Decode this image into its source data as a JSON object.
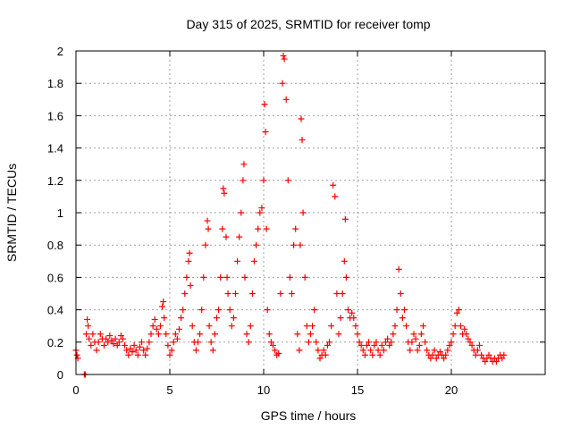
{
  "chart_data": {
    "type": "scatter",
    "title": "Day 315 of 2025, SRMTID for receiver tomp",
    "xlabel": "GPS time / hours",
    "ylabel": "SRMTID / TECUs",
    "xlim": [
      0,
      25
    ],
    "ylim": [
      0,
      2
    ],
    "xticks": [
      0,
      5,
      10,
      15,
      20
    ],
    "xtick_labels": [
      "0",
      "5",
      "10",
      "15",
      "20"
    ],
    "yticks": [
      0,
      0.2,
      0.4,
      0.6,
      0.8,
      1,
      1.2,
      1.4,
      1.6,
      1.8,
      2
    ],
    "ytick_labels": [
      "0",
      "0.2",
      "0.4",
      "0.6",
      "0.8",
      "1",
      "1.2",
      "1.4",
      "1.6",
      "1.8",
      "2"
    ],
    "grid": true,
    "marker": "+",
    "color": "#ff0000",
    "series": [
      {
        "name": "SRMTID",
        "points": [
          [
            0.0,
            0.15
          ],
          [
            0.05,
            0.12
          ],
          [
            0.1,
            0.1
          ],
          [
            0.45,
            0.0
          ],
          [
            0.5,
            0.0
          ],
          [
            0.55,
            0.25
          ],
          [
            0.6,
            0.34
          ],
          [
            0.65,
            0.3
          ],
          [
            0.7,
            0.22
          ],
          [
            0.8,
            0.18
          ],
          [
            0.9,
            0.25
          ],
          [
            1.0,
            0.2
          ],
          [
            1.1,
            0.15
          ],
          [
            1.2,
            0.2
          ],
          [
            1.3,
            0.25
          ],
          [
            1.4,
            0.22
          ],
          [
            1.5,
            0.18
          ],
          [
            1.6,
            0.22
          ],
          [
            1.7,
            0.2
          ],
          [
            1.8,
            0.24
          ],
          [
            1.9,
            0.21
          ],
          [
            2.0,
            0.19
          ],
          [
            2.1,
            0.22
          ],
          [
            2.2,
            0.18
          ],
          [
            2.3,
            0.2
          ],
          [
            2.4,
            0.24
          ],
          [
            2.5,
            0.22
          ],
          [
            2.6,
            0.18
          ],
          [
            2.7,
            0.15
          ],
          [
            2.8,
            0.12
          ],
          [
            2.9,
            0.16
          ],
          [
            3.0,
            0.14
          ],
          [
            3.1,
            0.18
          ],
          [
            3.2,
            0.15
          ],
          [
            3.3,
            0.12
          ],
          [
            3.4,
            0.17
          ],
          [
            3.5,
            0.2
          ],
          [
            3.6,
            0.15
          ],
          [
            3.7,
            0.12
          ],
          [
            3.8,
            0.16
          ],
          [
            3.9,
            0.2
          ],
          [
            4.0,
            0.25
          ],
          [
            4.1,
            0.3
          ],
          [
            4.2,
            0.34
          ],
          [
            4.3,
            0.28
          ],
          [
            4.4,
            0.25
          ],
          [
            4.5,
            0.3
          ],
          [
            4.6,
            0.42
          ],
          [
            4.65,
            0.45
          ],
          [
            4.7,
            0.35
          ],
          [
            4.8,
            0.25
          ],
          [
            4.9,
            0.18
          ],
          [
            5.0,
            0.12
          ],
          [
            5.1,
            0.15
          ],
          [
            5.2,
            0.2
          ],
          [
            5.3,
            0.25
          ],
          [
            5.4,
            0.22
          ],
          [
            5.5,
            0.28
          ],
          [
            5.6,
            0.35
          ],
          [
            5.7,
            0.4
          ],
          [
            5.8,
            0.5
          ],
          [
            5.9,
            0.6
          ],
          [
            6.0,
            0.7
          ],
          [
            6.05,
            0.75
          ],
          [
            6.1,
            0.55
          ],
          [
            6.2,
            0.3
          ],
          [
            6.3,
            0.2
          ],
          [
            6.4,
            0.15
          ],
          [
            6.5,
            0.2
          ],
          [
            6.6,
            0.25
          ],
          [
            6.7,
            0.4
          ],
          [
            6.8,
            0.6
          ],
          [
            6.9,
            0.8
          ],
          [
            7.0,
            0.95
          ],
          [
            7.05,
            0.9
          ],
          [
            7.1,
            0.3
          ],
          [
            7.2,
            0.2
          ],
          [
            7.3,
            0.15
          ],
          [
            7.4,
            0.25
          ],
          [
            7.5,
            0.35
          ],
          [
            7.6,
            0.4
          ],
          [
            7.7,
            0.6
          ],
          [
            7.8,
            0.9
          ],
          [
            7.85,
            1.15
          ],
          [
            7.9,
            1.12
          ],
          [
            8.0,
            0.85
          ],
          [
            8.05,
            0.6
          ],
          [
            8.1,
            0.5
          ],
          [
            8.2,
            0.4
          ],
          [
            8.3,
            0.3
          ],
          [
            8.4,
            0.35
          ],
          [
            8.5,
            0.5
          ],
          [
            8.6,
            0.7
          ],
          [
            8.7,
            0.85
          ],
          [
            8.8,
            1.0
          ],
          [
            8.9,
            1.2
          ],
          [
            8.95,
            1.3
          ],
          [
            9.0,
            0.6
          ],
          [
            9.1,
            0.25
          ],
          [
            9.2,
            0.2
          ],
          [
            9.3,
            0.3
          ],
          [
            9.4,
            0.5
          ],
          [
            9.5,
            0.7
          ],
          [
            9.6,
            0.8
          ],
          [
            9.7,
            0.9
          ],
          [
            9.8,
            1.0
          ],
          [
            9.9,
            1.03
          ],
          [
            10.0,
            1.2
          ],
          [
            10.05,
            1.67
          ],
          [
            10.1,
            1.5
          ],
          [
            10.15,
            0.9
          ],
          [
            10.2,
            0.4
          ],
          [
            10.3,
            0.25
          ],
          [
            10.4,
            0.2
          ],
          [
            10.5,
            0.18
          ],
          [
            10.6,
            0.15
          ],
          [
            10.7,
            0.12
          ],
          [
            10.8,
            0.13
          ],
          [
            10.9,
            0.5
          ],
          [
            11.0,
            1.8
          ],
          [
            11.05,
            1.97
          ],
          [
            11.1,
            1.95
          ],
          [
            11.2,
            1.7
          ],
          [
            11.3,
            1.2
          ],
          [
            11.4,
            0.6
          ],
          [
            11.5,
            0.5
          ],
          [
            11.6,
            0.8
          ],
          [
            11.7,
            0.9
          ],
          [
            11.8,
            0.25
          ],
          [
            11.9,
            0.15
          ],
          [
            11.95,
            0.8
          ],
          [
            12.0,
            1.58
          ],
          [
            12.05,
            1.45
          ],
          [
            12.1,
            1.0
          ],
          [
            12.2,
            0.6
          ],
          [
            12.3,
            0.3
          ],
          [
            12.4,
            0.2
          ],
          [
            12.5,
            0.25
          ],
          [
            12.6,
            0.3
          ],
          [
            12.7,
            0.4
          ],
          [
            12.8,
            0.2
          ],
          [
            12.9,
            0.15
          ],
          [
            13.0,
            0.1
          ],
          [
            13.1,
            0.12
          ],
          [
            13.2,
            0.15
          ],
          [
            13.3,
            0.12
          ],
          [
            13.4,
            0.18
          ],
          [
            13.5,
            0.2
          ],
          [
            13.6,
            0.3
          ],
          [
            13.7,
            1.17
          ],
          [
            13.8,
            1.1
          ],
          [
            13.9,
            0.5
          ],
          [
            14.0,
            0.25
          ],
          [
            14.1,
            0.35
          ],
          [
            14.2,
            0.5
          ],
          [
            14.3,
            0.7
          ],
          [
            14.35,
            0.96
          ],
          [
            14.4,
            0.6
          ],
          [
            14.5,
            0.4
          ],
          [
            14.6,
            0.35
          ],
          [
            14.7,
            0.38
          ],
          [
            14.8,
            0.35
          ],
          [
            14.9,
            0.3
          ],
          [
            15.0,
            0.25
          ],
          [
            15.1,
            0.2
          ],
          [
            15.2,
            0.18
          ],
          [
            15.3,
            0.15
          ],
          [
            15.4,
            0.12
          ],
          [
            15.5,
            0.18
          ],
          [
            15.6,
            0.2
          ],
          [
            15.7,
            0.15
          ],
          [
            15.8,
            0.12
          ],
          [
            15.9,
            0.18
          ],
          [
            16.0,
            0.2
          ],
          [
            16.1,
            0.15
          ],
          [
            16.2,
            0.12
          ],
          [
            16.3,
            0.18
          ],
          [
            16.4,
            0.15
          ],
          [
            16.5,
            0.2
          ],
          [
            16.6,
            0.22
          ],
          [
            16.7,
            0.18
          ],
          [
            16.8,
            0.2
          ],
          [
            16.9,
            0.25
          ],
          [
            17.0,
            0.3
          ],
          [
            17.1,
            0.4
          ],
          [
            17.2,
            0.65
          ],
          [
            17.3,
            0.5
          ],
          [
            17.4,
            0.35
          ],
          [
            17.5,
            0.4
          ],
          [
            17.6,
            0.3
          ],
          [
            17.7,
            0.2
          ],
          [
            17.8,
            0.15
          ],
          [
            17.9,
            0.2
          ],
          [
            18.0,
            0.25
          ],
          [
            18.1,
            0.22
          ],
          [
            18.2,
            0.15
          ],
          [
            18.3,
            0.18
          ],
          [
            18.4,
            0.25
          ],
          [
            18.5,
            0.3
          ],
          [
            18.6,
            0.2
          ],
          [
            18.7,
            0.15
          ],
          [
            18.8,
            0.12
          ],
          [
            18.9,
            0.1
          ],
          [
            19.0,
            0.12
          ],
          [
            19.1,
            0.15
          ],
          [
            19.2,
            0.1
          ],
          [
            19.3,
            0.12
          ],
          [
            19.4,
            0.14
          ],
          [
            19.5,
            0.12
          ],
          [
            19.6,
            0.1
          ],
          [
            19.7,
            0.12
          ],
          [
            19.8,
            0.15
          ],
          [
            19.9,
            0.18
          ],
          [
            20.0,
            0.2
          ],
          [
            20.1,
            0.25
          ],
          [
            20.2,
            0.3
          ],
          [
            20.3,
            0.38
          ],
          [
            20.4,
            0.4
          ],
          [
            20.5,
            0.3
          ],
          [
            20.6,
            0.25
          ],
          [
            20.7,
            0.28
          ],
          [
            20.8,
            0.25
          ],
          [
            20.9,
            0.22
          ],
          [
            21.0,
            0.2
          ],
          [
            21.1,
            0.18
          ],
          [
            21.2,
            0.15
          ],
          [
            21.3,
            0.12
          ],
          [
            21.4,
            0.15
          ],
          [
            21.5,
            0.18
          ],
          [
            21.6,
            0.12
          ],
          [
            21.7,
            0.1
          ],
          [
            21.8,
            0.08
          ],
          [
            21.9,
            0.1
          ],
          [
            22.0,
            0.12
          ],
          [
            22.1,
            0.1
          ],
          [
            22.2,
            0.08
          ],
          [
            22.3,
            0.1
          ],
          [
            22.4,
            0.08
          ],
          [
            22.5,
            0.1
          ],
          [
            22.6,
            0.12
          ],
          [
            22.7,
            0.1
          ],
          [
            22.8,
            0.12
          ]
        ]
      }
    ]
  }
}
